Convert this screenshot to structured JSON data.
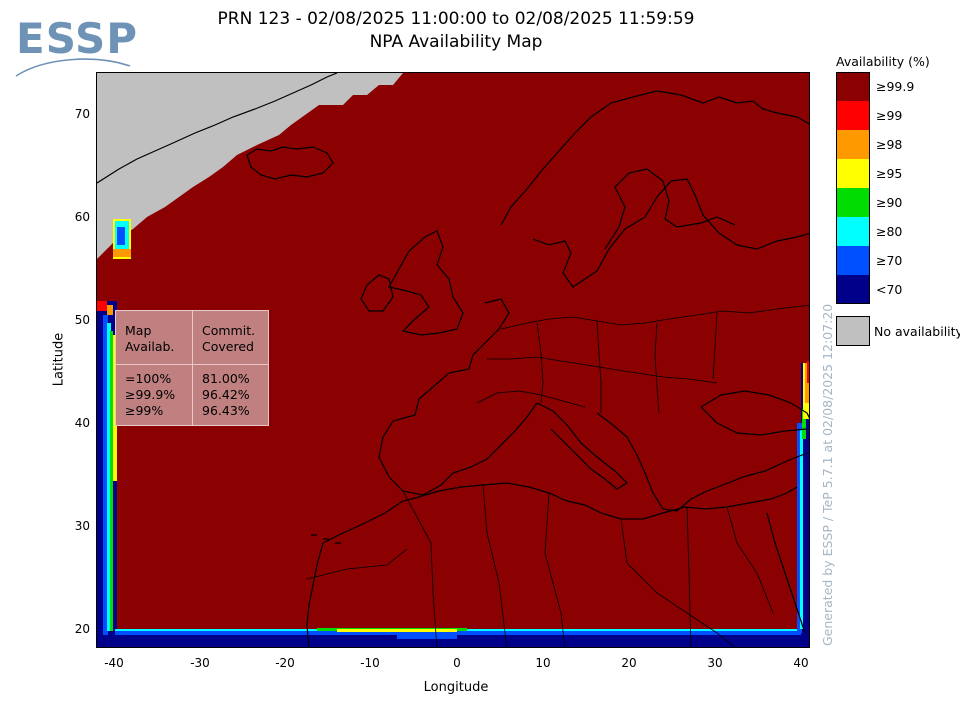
{
  "logo": {
    "text": "ESSP"
  },
  "title": {
    "line1": "PRN 123 - 02/08/2025 11:00:00 to 02/08/2025 11:59:59",
    "line2": "NPA Availability Map"
  },
  "axes": {
    "xlabel": "Longitude",
    "ylabel": "Latitude",
    "xticks": [
      "-40",
      "-30",
      "-20",
      "-10",
      "0",
      "10",
      "20",
      "30",
      "40"
    ],
    "yticks": [
      "70",
      "60",
      "50",
      "40",
      "30",
      "20"
    ],
    "lon_range": [
      -42,
      42
    ],
    "lat_range": [
      18,
      74
    ]
  },
  "stats": {
    "col1_header": [
      "Map",
      "Availab."
    ],
    "col2_header": [
      "Commit.",
      "Covered"
    ],
    "rows": [
      {
        "level": "=100%",
        "covered": "81.00%"
      },
      {
        "level": "≥99.9%",
        "covered": "96.42%"
      },
      {
        "level": "≥99%",
        "covered": "96.43%"
      }
    ]
  },
  "legend": {
    "title": "Availability (%)",
    "items": [
      {
        "label": "≥99.9",
        "color": "#8b0000"
      },
      {
        "label": "≥99",
        "color": "#ff0000"
      },
      {
        "label": "≥98",
        "color": "#ff9900"
      },
      {
        "label": "≥95",
        "color": "#ffff00"
      },
      {
        "label": "≥90",
        "color": "#00dd00"
      },
      {
        "label": "≥80",
        "color": "#00ffff"
      },
      {
        "label": "≥70",
        "color": "#0050ff"
      },
      {
        "label": "<70",
        "color": "#00008b"
      }
    ],
    "no_availability": {
      "label": "No availability",
      "color": "#c0c0c0"
    }
  },
  "credit": "Generated by ESSP / TeP 5.7.1 at 02/08/2025 12:07:20"
}
